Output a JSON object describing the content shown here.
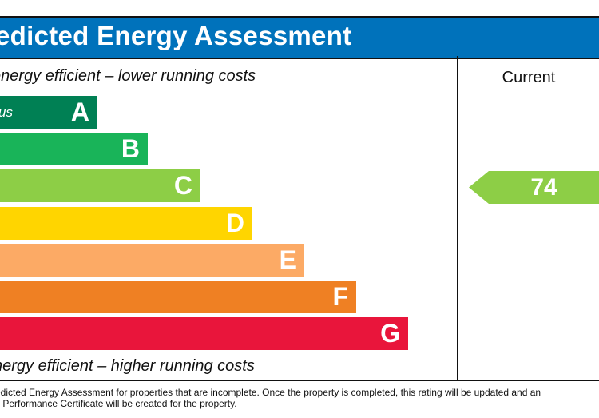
{
  "title": "edicted Energy Assessment",
  "top_caption": "energy efficient – lower running costs",
  "bottom_caption": "nergy efficient – higher running costs",
  "column_header": "Current",
  "footnote": {
    "line1": "edicted Energy Assessment for properties that are incomplete. Once the property is completed, this rating will be updated and an",
    "line2": "y Performance Certificate will be created for the property."
  },
  "chart_data": {
    "type": "bar",
    "orientation": "horizontal",
    "categories": [
      "A",
      "B",
      "C",
      "D",
      "E",
      "F",
      "G"
    ],
    "band_labels": [
      "us",
      "",
      "",
      "",
      "",
      "",
      ""
    ],
    "colors": [
      "#008054",
      "#19b459",
      "#8dce46",
      "#ffd500",
      "#fcaa65",
      "#ef8023",
      "#e9153b"
    ],
    "current_rating": {
      "value": 74,
      "band": "C"
    }
  }
}
